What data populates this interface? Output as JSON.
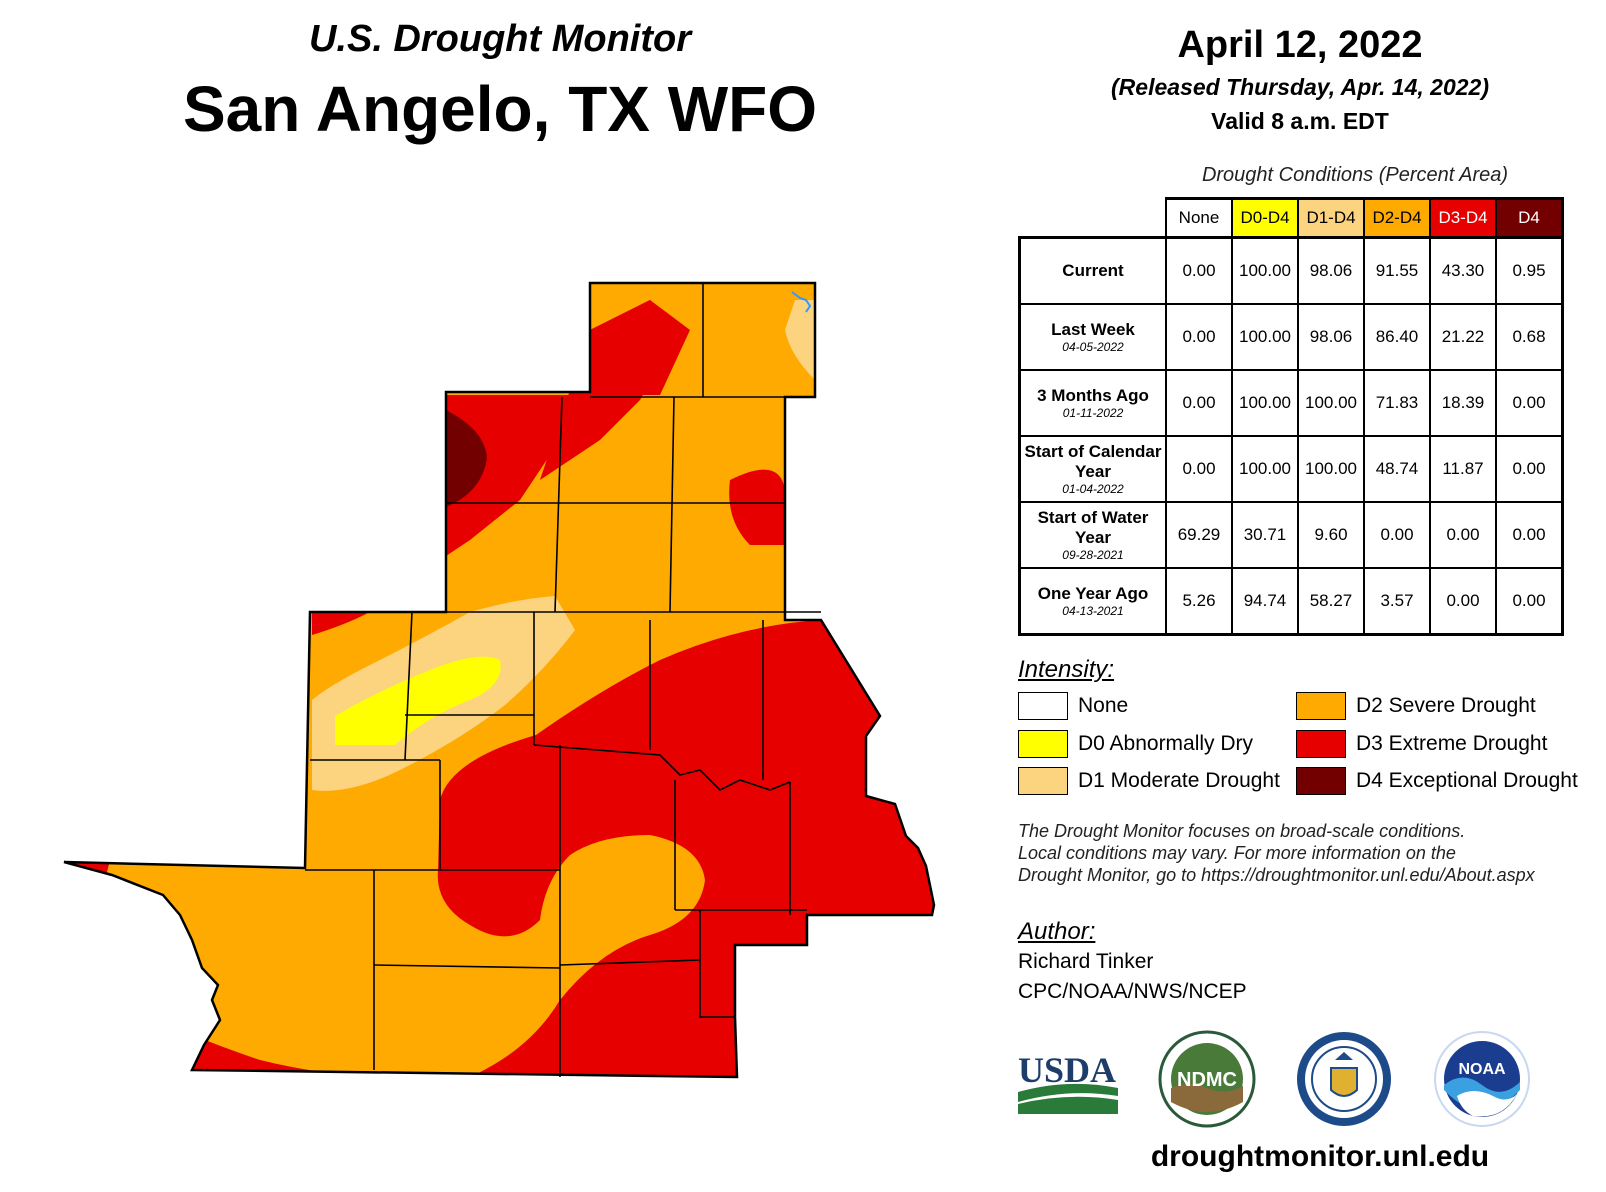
{
  "header": {
    "supertitle": "U.S. Drought Monitor",
    "title": "San Angelo, TX WFO",
    "date": "April 12, 2022",
    "released": "(Released Thursday, Apr. 14, 2022)",
    "valid": "Valid 8 a.m. EDT"
  },
  "table": {
    "caption": "Drought Conditions (Percent Area)",
    "columns": [
      {
        "label": "None",
        "color": "#ffffff",
        "text_color": "#000000"
      },
      {
        "label": "D0-D4",
        "color": "#ffff00",
        "text_color": "#000000"
      },
      {
        "label": "D1-D4",
        "color": "#fcd37f",
        "text_color": "#000000"
      },
      {
        "label": "D2-D4",
        "color": "#ffaa00",
        "text_color": "#000000"
      },
      {
        "label": "D3-D4",
        "color": "#e60000",
        "text_color": "#ffffff"
      },
      {
        "label": "D4",
        "color": "#730000",
        "text_color": "#ffffff"
      }
    ],
    "rows": [
      {
        "label": "Current",
        "date": "",
        "values": [
          "0.00",
          "100.00",
          "98.06",
          "91.55",
          "43.30",
          "0.95"
        ]
      },
      {
        "label": "Last Week",
        "date": "04-05-2022",
        "values": [
          "0.00",
          "100.00",
          "98.06",
          "86.40",
          "21.22",
          "0.68"
        ]
      },
      {
        "label": "3 Months Ago",
        "date": "01-11-2022",
        "values": [
          "0.00",
          "100.00",
          "100.00",
          "71.83",
          "18.39",
          "0.00"
        ]
      },
      {
        "label": "Start of Calendar Year",
        "date": "01-04-2022",
        "values": [
          "0.00",
          "100.00",
          "100.00",
          "48.74",
          "11.87",
          "0.00"
        ]
      },
      {
        "label": "Start of Water Year",
        "date": "09-28-2021",
        "values": [
          "69.29",
          "30.71",
          "9.60",
          "0.00",
          "0.00",
          "0.00"
        ]
      },
      {
        "label": "One Year Ago",
        "date": "04-13-2021",
        "values": [
          "5.26",
          "94.74",
          "58.27",
          "3.57",
          "0.00",
          "0.00"
        ]
      }
    ]
  },
  "legend": {
    "title": "Intensity:",
    "items": [
      {
        "label": "None",
        "color": "#ffffff"
      },
      {
        "label": "D0 Abnormally Dry",
        "color": "#ffff00"
      },
      {
        "label": "D1 Moderate Drought",
        "color": "#fcd37f"
      },
      {
        "label": "D2 Severe Drought",
        "color": "#ffaa00"
      },
      {
        "label": "D3 Extreme Drought",
        "color": "#e60000"
      },
      {
        "label": "D4 Exceptional Drought",
        "color": "#730000"
      }
    ]
  },
  "disclaimer": {
    "line1": "The Drought Monitor focuses on broad-scale conditions.",
    "line2": "Local conditions may vary. For more information on the",
    "line3": "Drought Monitor, go to https://droughtmonitor.unl.edu/About.aspx"
  },
  "author": {
    "label": "Author:",
    "name": "Richard Tinker",
    "org": "CPC/NOAA/NWS/NCEP"
  },
  "logos": {
    "usda": "USDA",
    "ndmc": "NDMC",
    "noaa": "NOAA"
  },
  "footer": {
    "url": "droughtmonitor.unl.edu"
  }
}
